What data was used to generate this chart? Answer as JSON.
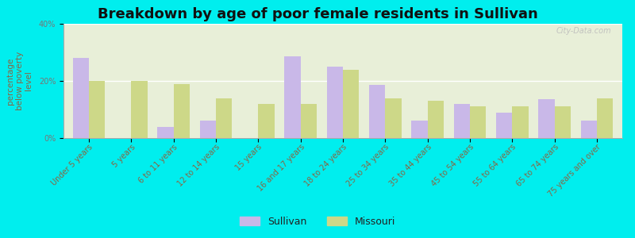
{
  "title": "Breakdown by age of poor female residents in Sullivan",
  "ylabel": "percentage\nbelow poverty\nlevel",
  "categories": [
    "Under 5 years",
    "5 years",
    "6 to 11 years",
    "12 to 14 years",
    "15 years",
    "16 and 17 years",
    "18 to 24 years",
    "25 to 34 years",
    "35 to 44 years",
    "45 to 54 years",
    "55 to 64 years",
    "65 to 74 years",
    "75 years and over"
  ],
  "sullivan": [
    28.0,
    0.0,
    4.0,
    6.0,
    0.0,
    28.5,
    25.0,
    18.5,
    6.0,
    12.0,
    9.0,
    13.5,
    6.0
  ],
  "missouri": [
    20.0,
    20.0,
    19.0,
    14.0,
    12.0,
    12.0,
    24.0,
    14.0,
    13.0,
    11.0,
    11.0,
    11.0,
    14.0
  ],
  "sullivan_color": "#c9b8e8",
  "missouri_color": "#cdd888",
  "background_color": "#00eeee",
  "plot_bg_color": "#e8efd8",
  "ylim": [
    0,
    40
  ],
  "yticks": [
    0,
    20,
    40
  ],
  "ytick_labels": [
    "0%",
    "20%",
    "40%"
  ],
  "title_fontsize": 13,
  "axis_label_fontsize": 7.5,
  "tick_fontsize": 7,
  "tick_color": "#886644",
  "ylabel_color": "#886644",
  "legend_sullivan": "Sullivan",
  "legend_missouri": "Missouri",
  "bar_width": 0.38,
  "watermark": "City-Data.com"
}
